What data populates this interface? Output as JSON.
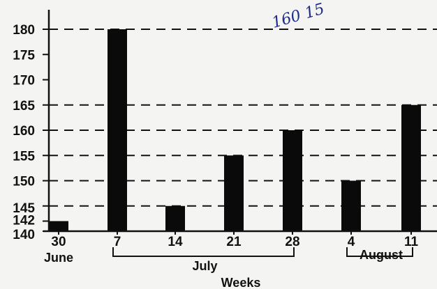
{
  "annotation": "160 15",
  "chart_data": {
    "type": "bar",
    "title": "",
    "xlabel": "Weeks",
    "ylabel": "",
    "categories": [
      "30",
      "7",
      "14",
      "21",
      "28",
      "4",
      "11"
    ],
    "values": [
      142,
      180,
      145,
      155,
      160,
      150,
      165
    ],
    "ylim": [
      140,
      180
    ],
    "yticks": [
      140,
      142,
      145,
      150,
      155,
      160,
      165,
      170,
      175,
      180
    ],
    "reference_lines": [
      145,
      150,
      155,
      160,
      165,
      180
    ],
    "month_groups": [
      {
        "label": "June",
        "from": 0,
        "to": 0
      },
      {
        "label": "July",
        "from": 1,
        "to": 4
      },
      {
        "label": "August",
        "from": 5,
        "to": 6
      }
    ],
    "grid": false,
    "legend": "none",
    "bar_color": "#0a0a0a"
  }
}
